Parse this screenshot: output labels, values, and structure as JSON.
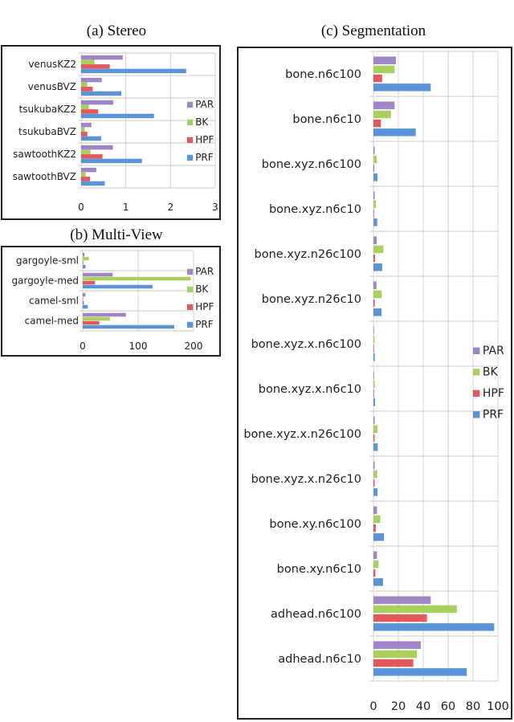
{
  "series_colors": {
    "PAR": "#9e85c6",
    "BK": "#a9cf5d",
    "HPF": "#e45a5c",
    "PRF": "#5b93d8"
  },
  "chart_data": [
    {
      "type": "bar",
      "orientation": "horizontal",
      "title": "(a)  Stereo",
      "categories": [
        "venusKZ2",
        "venusBVZ",
        "tsukubaKZ2",
        "tsukubaBVZ",
        "sawtoothKZ2",
        "sawtoothBVZ"
      ],
      "series": [
        {
          "name": "PAR",
          "values": [
            0.93,
            0.46,
            0.72,
            0.23,
            0.71,
            0.34
          ]
        },
        {
          "name": "BK",
          "values": [
            0.3,
            0.14,
            0.17,
            0.08,
            0.21,
            0.1
          ]
        },
        {
          "name": "HPF",
          "values": [
            0.64,
            0.26,
            0.38,
            0.14,
            0.48,
            0.2
          ]
        },
        {
          "name": "PRF",
          "values": [
            2.35,
            0.9,
            1.63,
            0.45,
            1.36,
            0.53
          ]
        }
      ],
      "xlim": [
        0,
        3
      ],
      "xticks": [
        "0",
        "1",
        "2",
        "3"
      ],
      "grid": true,
      "legend": "right"
    },
    {
      "type": "bar",
      "orientation": "horizontal",
      "title": "(b)  Multi-View",
      "categories": [
        "gargoyle-sml",
        "gargoyle-med",
        "camel-sml",
        "camel-med"
      ],
      "series": [
        {
          "name": "PAR",
          "values": [
            3,
            54,
            5,
            78
          ]
        },
        {
          "name": "BK",
          "values": [
            11,
            195,
            1,
            49
          ]
        },
        {
          "name": "HPF",
          "values": [
            0.5,
            22,
            2,
            30
          ]
        },
        {
          "name": "PRF",
          "values": [
            5,
            126,
            9,
            165
          ]
        }
      ],
      "xlim": [
        0,
        200
      ],
      "xticks": [
        "0",
        "100",
        "200"
      ],
      "grid": true,
      "legend": "right"
    },
    {
      "type": "bar",
      "orientation": "horizontal",
      "title": "(c)  Segmentation",
      "categories": [
        "bone.n6c100",
        "bone.n6c10",
        "bone.xyz.n6c100",
        "bone.xyz.n6c10",
        "bone.xyz.n26c100",
        "bone.xyz.n26c10",
        "bone.xyz.x.n6c100",
        "bone.xyz.x.n6c10",
        "bone.xyz.x.n26c100",
        "bone.xyz.x.n26c10",
        "bone.xy.n6c100",
        "bone.xy.n6c10",
        "adhead.n6c100",
        "adhead.n6c10"
      ],
      "series": [
        {
          "name": "PAR",
          "values": [
            18,
            17,
            1,
            1,
            2.6,
            2.4,
            0.4,
            0.4,
            1,
            1,
            2.8,
            2.8,
            46,
            38
          ]
        },
        {
          "name": "BK",
          "values": [
            17,
            14,
            2.6,
            2,
            8,
            6.7,
            0.9,
            1,
            3.2,
            3,
            5.4,
            4.1,
            67,
            35
          ]
        },
        {
          "name": "HPF",
          "values": [
            7,
            6,
            0.6,
            0.4,
            1.3,
            1,
            0.2,
            0.2,
            0.9,
            0.9,
            1.9,
            1.5,
            43,
            32
          ]
        },
        {
          "name": "PRF",
          "values": [
            46,
            34,
            3.2,
            3,
            7,
            6.5,
            1.1,
            1.3,
            3.4,
            3.2,
            8.4,
            7.7,
            97,
            75
          ]
        }
      ],
      "xlim": [
        0,
        100
      ],
      "xticks": [
        "0",
        "20",
        "40",
        "60",
        "80",
        "100"
      ],
      "grid": true,
      "legend": "right"
    }
  ]
}
